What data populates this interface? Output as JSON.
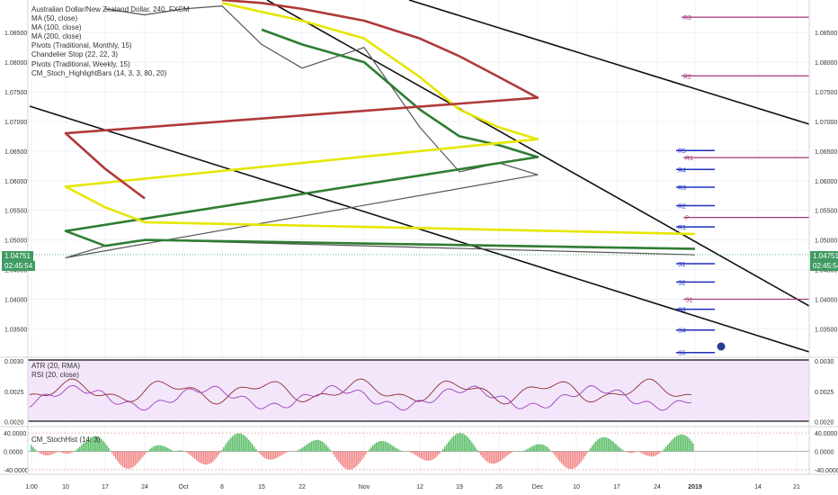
{
  "legend": [
    "Australian Dollar/New Zealand Dollar, 240, FXCM",
    "MA (50, close)",
    "MA (100, close)",
    "MA (200, close)",
    "Pivots (Traditional, Monthly, 15)",
    "Chandelier Stop (22, 22, 3)",
    "Pivots (Traditional, Weekly, 15)",
    "CM_Stoch_HighlightBars (14, 3, 3, 80, 20)"
  ],
  "price_axis": {
    "ticks": [
      "1.08500",
      "1.08000",
      "1.07500",
      "1.07000",
      "1.06500",
      "1.06000",
      "1.05500",
      "1.05000",
      "1.04500",
      "1.04000",
      "1.03500"
    ],
    "ylim": [
      1.0305,
      1.0905
    ],
    "current_price": "1.04751",
    "countdown": "02:45:54"
  },
  "time_axis": {
    "labels": [
      "1:00",
      "10",
      "17",
      "24",
      "Oct",
      "8",
      "15",
      "22",
      "Nov",
      "12",
      "19",
      "26",
      "Dec",
      "10",
      "17",
      "24",
      "2019",
      "14",
      "21"
    ]
  },
  "monthly_pivots": [
    {
      "label": "R3",
      "value": 1.0876
    },
    {
      "label": "R2",
      "value": 1.0777
    },
    {
      "label": "R1",
      "value": 1.0639
    },
    {
      "label": "P",
      "value": 1.0538
    },
    {
      "label": "S1",
      "value": 1.04
    }
  ],
  "weekly_pivots": [
    {
      "label": "R5",
      "value": 1.0651
    },
    {
      "label": "R4",
      "value": 1.0619
    },
    {
      "label": "R3",
      "value": 1.0589
    },
    {
      "label": "R2",
      "value": 1.0558
    },
    {
      "label": "R1",
      "value": 1.0522
    },
    {
      "label": "S1",
      "value": 1.046
    },
    {
      "label": "S2",
      "value": 1.0429
    },
    {
      "label": "S3",
      "value": 1.0383
    },
    {
      "label": "S4",
      "value": 1.0348
    },
    {
      "label": "S5",
      "value": 1.031
    }
  ],
  "atr_pane": {
    "labels": [
      "ATR (20, RMA)",
      "RSI (20, close)"
    ],
    "ticks": [
      "0.0030",
      "0.0025",
      "0.0020"
    ],
    "ylim": [
      0.00195,
      0.00303
    ]
  },
  "stoch_pane": {
    "label": "CM_StochHist (14, 3)",
    "ticks": [
      "40.0000",
      "0.0000",
      "-40.0000"
    ],
    "ylim": [
      -50,
      50
    ]
  },
  "chart_data": {
    "type": "line",
    "title": "Australian Dollar/New Zealand Dollar, 240, FXCM",
    "x_labels": [
      "1:00",
      "10",
      "17",
      "24",
      "Oct",
      "8",
      "15",
      "22",
      "Nov",
      "12",
      "19",
      "26",
      "Dec",
      "10",
      "17",
      "24",
      "2019",
      "14",
      "21"
    ],
    "series": [
      {
        "name": "MA (50, close)",
        "color": "#2e7d32",
        "x": [
          "15",
          "22",
          "Nov",
          "12",
          "19",
          "26",
          "Dec",
          "10",
          "17",
          "24",
          "2019"
        ],
        "values": [
          1.0855,
          1.083,
          1.08,
          1.072,
          1.0675,
          1.066,
          1.064,
          1.0515,
          1.049,
          1.05,
          1.0485
        ]
      },
      {
        "name": "MA (100, close)",
        "color": "#e6e600",
        "x": [
          "8",
          "15",
          "22",
          "Nov",
          "12",
          "19",
          "26",
          "Dec",
          "10",
          "17",
          "24",
          "2019"
        ],
        "values": [
          1.09,
          1.0885,
          1.087,
          1.084,
          1.0775,
          1.072,
          1.069,
          1.067,
          1.059,
          1.0555,
          1.053,
          1.051
        ]
      },
      {
        "name": "MA (200, close)",
        "color": "#b03a3a",
        "x": [
          "8",
          "15",
          "22",
          "Nov",
          "12",
          "19",
          "26",
          "Dec",
          "10",
          "17",
          "24"
        ],
        "values": [
          1.0905,
          1.09,
          1.089,
          1.087,
          1.084,
          1.081,
          1.0775,
          1.074,
          1.068,
          1.062,
          1.057
        ]
      },
      {
        "name": "Price",
        "color": "#555555",
        "x": [
          "17",
          "24",
          "Oct",
          "8",
          "15",
          "22",
          "Nov",
          "12",
          "19",
          "26",
          "Dec",
          "10",
          "17",
          "24",
          "2019"
        ],
        "values": [
          1.089,
          1.088,
          1.089,
          1.0895,
          1.083,
          1.079,
          1.0825,
          1.069,
          1.0615,
          1.063,
          1.061,
          1.047,
          1.049,
          1.05,
          1.0475
        ]
      }
    ],
    "ylim": [
      1.0305,
      1.0905
    ],
    "grid": true
  }
}
